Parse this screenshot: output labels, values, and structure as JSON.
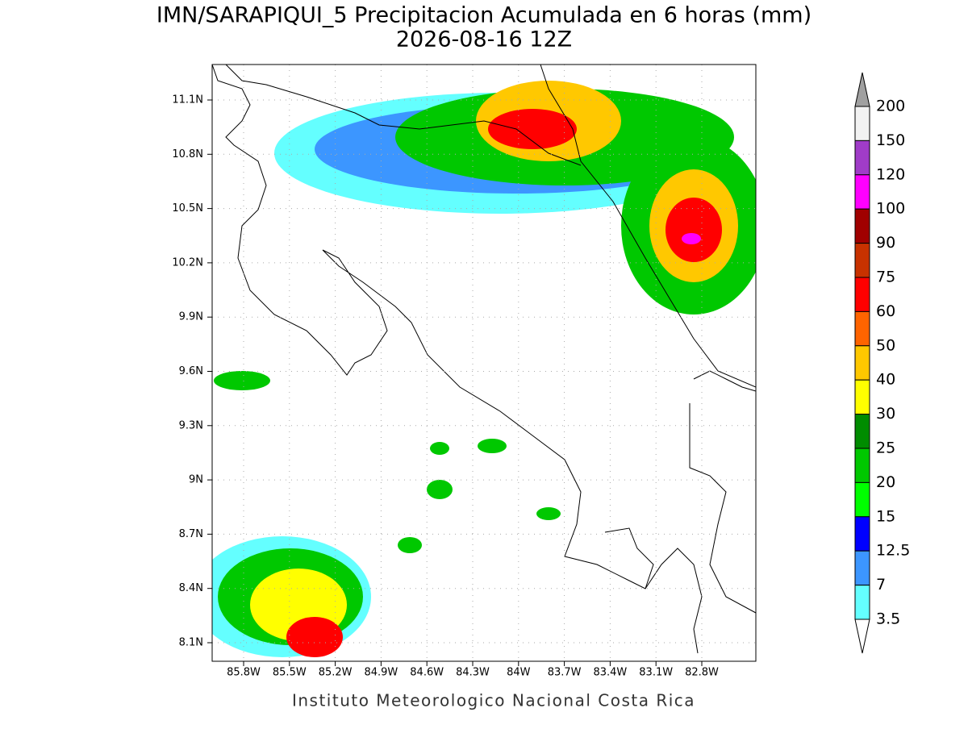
{
  "header": {
    "title": "IMN/SARAPIQUI_5 Precipitacion Acumulada en 6 horas (mm)",
    "subtitle": "2026-08-16 12Z"
  },
  "map": {
    "lat_labels": [
      "11.1N",
      "10.8N",
      "10.5N",
      "10.2N",
      "9.9N",
      "9.6N",
      "9.3N",
      "9N",
      "8.7N",
      "8.4N",
      "8.1N"
    ],
    "lon_labels": [
      "85.8W",
      "85.5W",
      "85.2W",
      "84.9W",
      "84.6W",
      "84.3W",
      "84W",
      "83.7W",
      "83.4W",
      "83.1W",
      "82.8W"
    ]
  },
  "colorbar": {
    "labels": [
      "200",
      "150",
      "120",
      "100",
      "90",
      "75",
      "60",
      "50",
      "40",
      "30",
      "25",
      "20",
      "15",
      "12.5",
      "7",
      "3.5"
    ],
    "colors": [
      "#f2f2f2",
      "#a03cc8",
      "#ff00ff",
      "#a00000",
      "#c83200",
      "#ff0000",
      "#ff6400",
      "#ffc800",
      "#ffff00",
      "#008c00",
      "#00c800",
      "#00ff00",
      "#0000ff",
      "#3c96ff",
      "#64ffff"
    ]
  },
  "footer": "Instituto Meteorologico Nacional Costa Rica"
}
